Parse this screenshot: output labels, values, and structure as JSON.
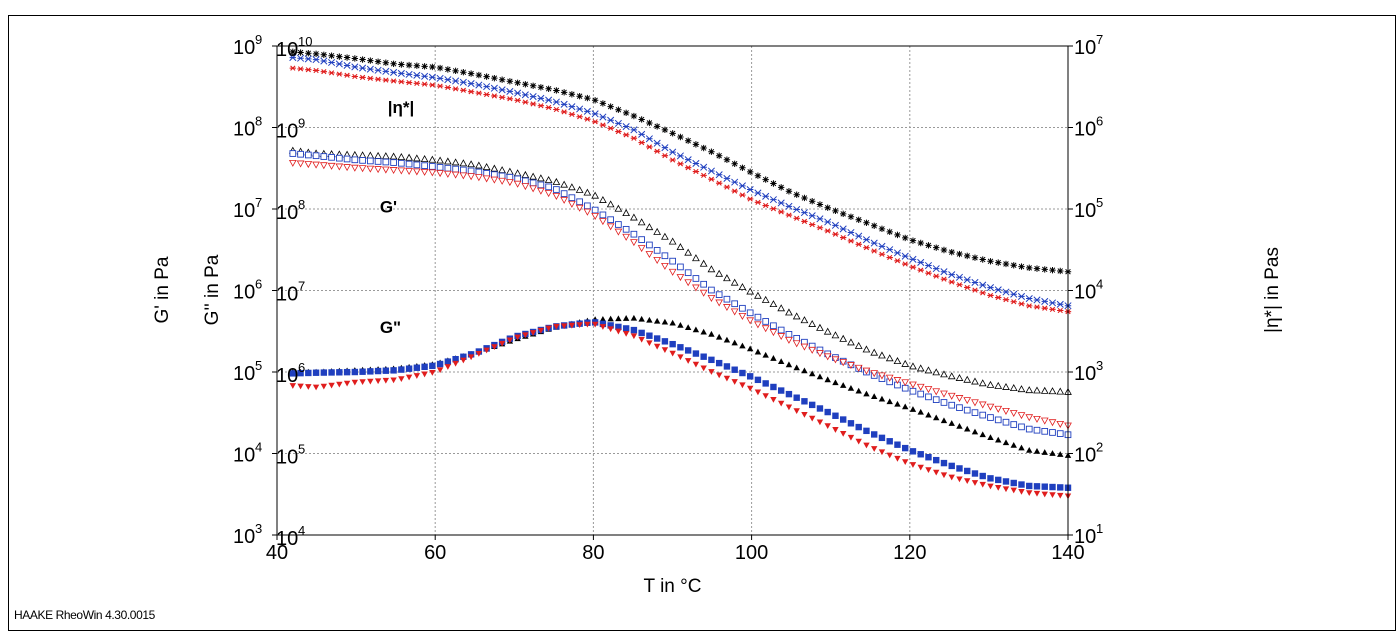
{
  "footer": "HAAKE RheoWin 4.30.0015",
  "colors": {
    "black": "#000000",
    "blue": "#1f3fbf",
    "red": "#e01d1d",
    "grid": "#9a9a9a"
  },
  "chart_data": {
    "type": "scatter",
    "xlabel": "T in °C",
    "xlim": [
      40,
      140
    ],
    "x_ticks": [
      40,
      60,
      80,
      100,
      120,
      140
    ],
    "y_axes": [
      {
        "id": "G_prime",
        "label": "G' in Pa",
        "scale": "log",
        "range": [
          1000,
          1000000000
        ],
        "ticks": [
          [
            "10",
            "3"
          ],
          [
            "10",
            "4"
          ],
          [
            "10",
            "5"
          ],
          [
            "10",
            "6"
          ],
          [
            "10",
            "7"
          ],
          [
            "10",
            "8"
          ],
          [
            "10",
            "9"
          ]
        ]
      },
      {
        "id": "G_double_prime",
        "label": "G'' in Pa",
        "scale": "log",
        "range": [
          10000,
          10000000000
        ],
        "ticks": [
          [
            "10",
            "4"
          ],
          [
            "10",
            "5"
          ],
          [
            "10",
            "6"
          ],
          [
            "10",
            "7"
          ],
          [
            "10",
            "8"
          ],
          [
            "10",
            "9"
          ],
          [
            "10",
            "10"
          ]
        ]
      },
      {
        "id": "eta",
        "label": "|η*| in Pas",
        "scale": "log",
        "range": [
          10,
          10000000
        ],
        "ticks": [
          [
            "10",
            "1"
          ],
          [
            "10",
            "2"
          ],
          [
            "10",
            "3"
          ],
          [
            "10",
            "4"
          ],
          [
            "10",
            "5"
          ],
          [
            "10",
            "6"
          ],
          [
            "10",
            "7"
          ]
        ]
      }
    ],
    "grid": true,
    "annotations": [
      {
        "text": "|η*|",
        "x": 54,
        "axis": "eta",
        "y": 1500000
      },
      {
        "text": "G'",
        "x": 53,
        "axis": "G_prime",
        "y": 9000000
      },
      {
        "text": "G\"",
        "x": 53,
        "axis": "G_prime",
        "y": 300000
      }
    ],
    "series": [
      {
        "quantity": "eta",
        "axis": "eta",
        "color": "#000000",
        "marker": "asterisk",
        "x": [
          40,
          45,
          50,
          55,
          60,
          65,
          70,
          75,
          80,
          85,
          90,
          95,
          100,
          105,
          110,
          115,
          120,
          125,
          130,
          135,
          140
        ],
        "y": [
          8800000,
          8000000,
          7000000,
          6000000,
          5500000,
          4500000,
          3600000,
          2900000,
          2200000,
          1400000,
          850000,
          500000,
          280000,
          160000,
          100000,
          65000,
          42000,
          30000,
          23000,
          19000,
          17000
        ]
      },
      {
        "quantity": "eta",
        "axis": "eta",
        "color": "#1f3fbf",
        "marker": "x",
        "x": [
          40,
          45,
          50,
          55,
          60,
          65,
          70,
          75,
          80,
          85,
          90,
          95,
          100,
          105,
          110,
          115,
          120,
          125,
          130,
          135,
          140
        ],
        "y": [
          7500000,
          6800000,
          5500000,
          4700000,
          4100000,
          3400000,
          2700000,
          2100000,
          1500000,
          950000,
          500000,
          290000,
          170000,
          105000,
          67000,
          40000,
          25000,
          16000,
          11000,
          8000,
          6500
        ]
      },
      {
        "quantity": "eta",
        "axis": "eta",
        "color": "#e01d1d",
        "marker": "star",
        "x": [
          40,
          45,
          50,
          55,
          60,
          65,
          70,
          75,
          80,
          85,
          90,
          95,
          100,
          105,
          110,
          115,
          120,
          125,
          130,
          135,
          140
        ],
        "y": [
          5600000,
          5000000,
          4200000,
          3700000,
          3300000,
          2700000,
          2200000,
          1700000,
          1200000,
          750000,
          400000,
          230000,
          130000,
          82000,
          52000,
          32000,
          20000,
          13000,
          8800,
          6500,
          5500
        ]
      },
      {
        "quantity": "G_prime",
        "axis": "G_prime",
        "color": "#000000",
        "marker": "open-triangle-up",
        "x": [
          40,
          45,
          50,
          55,
          60,
          65,
          70,
          75,
          80,
          85,
          90,
          95,
          100,
          105,
          110,
          115,
          120,
          125,
          130,
          135,
          140
        ],
        "y": [
          55000000,
          48000000,
          46000000,
          44000000,
          40000000,
          35000000,
          28000000,
          22000000,
          15000000,
          8000000,
          4000000,
          1800000,
          950000,
          520000,
          300000,
          180000,
          120000,
          90000,
          70000,
          60000,
          57000
        ]
      },
      {
        "quantity": "G_prime",
        "axis": "G_prime",
        "color": "#1f3fbf",
        "marker": "open-square",
        "x": [
          40,
          45,
          50,
          55,
          60,
          65,
          70,
          75,
          80,
          85,
          90,
          95,
          100,
          105,
          110,
          115,
          120,
          125,
          130,
          135,
          140
        ],
        "y": [
          50000000,
          45000000,
          40000000,
          37000000,
          33000000,
          29000000,
          24000000,
          18000000,
          10000000,
          5000000,
          2300000,
          1000000,
          520000,
          280000,
          160000,
          95000,
          60000,
          40000,
          28000,
          20000,
          17000
        ]
      },
      {
        "quantity": "G_prime",
        "axis": "G_prime",
        "color": "#e01d1d",
        "marker": "open-triangle-down",
        "x": [
          40,
          45,
          50,
          55,
          60,
          65,
          70,
          75,
          80,
          85,
          90,
          95,
          100,
          105,
          110,
          115,
          120,
          125,
          130,
          135,
          140
        ],
        "y": [
          38000000,
          35000000,
          32000000,
          30000000,
          28000000,
          25000000,
          21000000,
          15000000,
          8500000,
          4000000,
          1700000,
          800000,
          420000,
          240000,
          150000,
          100000,
          72000,
          52000,
          38000,
          28000,
          22000
        ]
      },
      {
        "quantity": "G_double_prime",
        "axis": "G_double_prime",
        "color": "#000000",
        "marker": "filled-triangle-up",
        "x": [
          40,
          45,
          50,
          55,
          60,
          65,
          70,
          75,
          80,
          85,
          90,
          95,
          100,
          105,
          110,
          115,
          120,
          125,
          130,
          135,
          140
        ],
        "y": [
          1000000,
          1000000,
          1050000,
          1100000,
          1250000,
          1700000,
          2500000,
          3500000,
          4400000,
          4600000,
          4000000,
          2900000,
          1900000,
          1200000,
          780000,
          520000,
          360000,
          240000,
          160000,
          110000,
          95000
        ]
      },
      {
        "quantity": "G_double_prime",
        "axis": "G_double_prime",
        "color": "#1f3fbf",
        "marker": "filled-square",
        "x": [
          40,
          45,
          50,
          55,
          60,
          65,
          70,
          75,
          80,
          85,
          90,
          95,
          100,
          105,
          110,
          115,
          120,
          125,
          130,
          135,
          140
        ],
        "y": [
          950000,
          980000,
          1000000,
          1050000,
          1200000,
          1700000,
          2700000,
          3600000,
          4100000,
          3300000,
          2200000,
          1400000,
          870000,
          520000,
          310000,
          180000,
          110000,
          72000,
          50000,
          40000,
          38000
        ]
      },
      {
        "quantity": "G_double_prime",
        "axis": "G_double_prime",
        "color": "#e01d1d",
        "marker": "filled-triangle-down",
        "x": [
          40,
          45,
          50,
          55,
          60,
          65,
          70,
          75,
          80,
          85,
          90,
          95,
          100,
          105,
          110,
          115,
          120,
          125,
          130,
          135,
          140
        ],
        "y": [
          700000,
          650000,
          750000,
          800000,
          1000000,
          1600000,
          2600000,
          3600000,
          3900000,
          2800000,
          1700000,
          1000000,
          620000,
          360000,
          210000,
          120000,
          75000,
          52000,
          40000,
          33000,
          30000
        ]
      }
    ]
  }
}
